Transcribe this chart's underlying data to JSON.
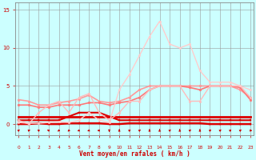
{
  "xlabel": "Vent moyen/en rafales ( km/h )",
  "xlabel_color": "#cc0000",
  "bg_color": "#ccffff",
  "grid_color": "#999999",
  "tick_color": "#cc0000",
  "x_ticks": [
    0,
    1,
    2,
    3,
    4,
    5,
    6,
    7,
    8,
    9,
    10,
    11,
    12,
    13,
    14,
    15,
    16,
    17,
    18,
    19,
    20,
    21,
    22,
    23
  ],
  "y_ticks": [
    0,
    5,
    10,
    15
  ],
  "ylim": [
    -1.5,
    16
  ],
  "xlim": [
    -0.3,
    23.3
  ],
  "series": [
    {
      "x": [
        0,
        1,
        2,
        3,
        4,
        5,
        6,
        7,
        8,
        9,
        10,
        11,
        12,
        13,
        14,
        15,
        16,
        17,
        18,
        19,
        20,
        21,
        22,
        23
      ],
      "y": [
        0.0,
        0.0,
        0.1,
        0.0,
        0.0,
        0.1,
        0.1,
        0.1,
        0.1,
        0.0,
        0.0,
        0.1,
        0.1,
        0.1,
        0.1,
        0.1,
        0.1,
        0.1,
        0.1,
        0.0,
        0.0,
        0.0,
        0.0,
        0.0
      ],
      "color": "#dd0000",
      "lw": 1.8,
      "marker": "s",
      "ms": 2.0
    },
    {
      "x": [
        0,
        1,
        2,
        3,
        4,
        5,
        6,
        7,
        8,
        9,
        10,
        11,
        12,
        13,
        14,
        15,
        16,
        17,
        18,
        19,
        20,
        21,
        22,
        23
      ],
      "y": [
        1.0,
        1.0,
        1.0,
        1.0,
        1.0,
        1.0,
        1.0,
        1.0,
        1.0,
        1.0,
        1.0,
        1.0,
        1.0,
        1.0,
        1.0,
        1.0,
        1.0,
        1.0,
        1.0,
        1.0,
        1.0,
        1.0,
        1.0,
        1.0
      ],
      "color": "#dd0000",
      "lw": 2.0,
      "marker": null,
      "ms": 0
    },
    {
      "x": [
        0,
        1,
        2,
        3,
        4,
        5,
        6,
        7,
        8,
        9,
        10,
        11,
        12,
        13,
        14,
        15,
        16,
        17,
        18,
        19,
        20,
        21,
        22,
        23
      ],
      "y": [
        0.5,
        0.5,
        0.5,
        0.5,
        0.5,
        1.0,
        1.5,
        1.5,
        1.5,
        1.0,
        0.5,
        0.5,
        0.5,
        0.5,
        0.5,
        0.5,
        0.5,
        0.5,
        0.5,
        0.5,
        0.5,
        0.5,
        0.5,
        0.5
      ],
      "color": "#dd0000",
      "lw": 1.5,
      "marker": "s",
      "ms": 2.0
    },
    {
      "x": [
        0,
        1,
        2,
        3,
        4,
        5,
        6,
        7,
        8,
        9,
        10,
        11,
        12,
        13,
        14,
        15,
        16,
        17,
        18,
        19,
        20,
        21,
        22,
        23
      ],
      "y": [
        3.2,
        3.0,
        2.5,
        2.5,
        2.8,
        3.0,
        3.3,
        3.8,
        3.0,
        2.8,
        3.0,
        3.5,
        4.5,
        5.0,
        5.0,
        5.0,
        5.0,
        5.0,
        5.0,
        5.0,
        5.0,
        5.0,
        4.5,
        3.5
      ],
      "color": "#ff9999",
      "lw": 1.2,
      "marker": "o",
      "ms": 2.0
    },
    {
      "x": [
        0,
        1,
        2,
        3,
        4,
        5,
        6,
        7,
        8,
        9,
        10,
        11,
        12,
        13,
        14,
        15,
        16,
        17,
        18,
        19,
        20,
        21,
        22,
        23
      ],
      "y": [
        2.5,
        2.5,
        2.2,
        2.2,
        2.5,
        2.5,
        2.5,
        2.8,
        2.8,
        2.5,
        2.8,
        3.0,
        3.5,
        4.5,
        5.0,
        5.0,
        5.0,
        4.8,
        4.5,
        5.0,
        5.0,
        5.0,
        4.8,
        3.2
      ],
      "color": "#ff7777",
      "lw": 1.2,
      "marker": "o",
      "ms": 2.0
    },
    {
      "x": [
        0,
        1,
        2,
        3,
        4,
        5,
        6,
        7,
        8,
        9,
        10,
        11,
        12,
        13,
        14,
        15,
        16,
        17,
        18,
        19,
        20,
        21,
        22,
        23
      ],
      "y": [
        0.5,
        0.0,
        1.5,
        2.5,
        3.0,
        1.5,
        3.5,
        4.0,
        1.5,
        0.5,
        1.5,
        3.0,
        3.0,
        4.5,
        5.0,
        5.0,
        5.0,
        3.0,
        3.0,
        5.0,
        5.0,
        5.0,
        5.0,
        3.5
      ],
      "color": "#ffbbbb",
      "lw": 1.0,
      "marker": "o",
      "ms": 1.8
    },
    {
      "x": [
        0,
        1,
        2,
        3,
        4,
        5,
        6,
        7,
        8,
        9,
        10,
        11,
        12,
        13,
        14,
        15,
        16,
        17,
        18,
        19,
        20,
        21,
        22,
        23
      ],
      "y": [
        0.2,
        0.1,
        0.1,
        0.2,
        0.3,
        0.2,
        0.5,
        1.5,
        0.5,
        0.2,
        4.5,
        6.5,
        9.0,
        11.5,
        13.5,
        10.5,
        10.0,
        10.5,
        7.0,
        5.5,
        5.5,
        5.5,
        5.0,
        4.5
      ],
      "color": "#ffcccc",
      "lw": 1.0,
      "marker": "o",
      "ms": 1.8
    }
  ],
  "wind_symbols": [
    {
      "x": 0,
      "type": "sw"
    },
    {
      "x": 1,
      "type": "wsw"
    },
    {
      "x": 2,
      "type": "se"
    },
    {
      "x": 3,
      "type": "ese"
    },
    {
      "x": 4,
      "type": "ne"
    },
    {
      "x": 5,
      "type": "ne"
    },
    {
      "x": 6,
      "type": "ene"
    },
    {
      "x": 7,
      "type": "ene"
    },
    {
      "x": 8,
      "type": "e"
    },
    {
      "x": 9,
      "type": "n"
    },
    {
      "x": 10,
      "type": "s"
    },
    {
      "x": 11,
      "type": "sw"
    },
    {
      "x": 12,
      "type": "sw"
    },
    {
      "x": 13,
      "type": "s"
    },
    {
      "x": 14,
      "type": "s"
    },
    {
      "x": 15,
      "type": "sw"
    },
    {
      "x": 16,
      "type": "s"
    },
    {
      "x": 17,
      "type": "sw"
    },
    {
      "x": 18,
      "type": "s"
    },
    {
      "x": 19,
      "type": "sw"
    },
    {
      "x": 20,
      "type": "sw"
    },
    {
      "x": 21,
      "type": "sw"
    },
    {
      "x": 22,
      "type": "sw"
    },
    {
      "x": 23,
      "type": "w"
    }
  ]
}
